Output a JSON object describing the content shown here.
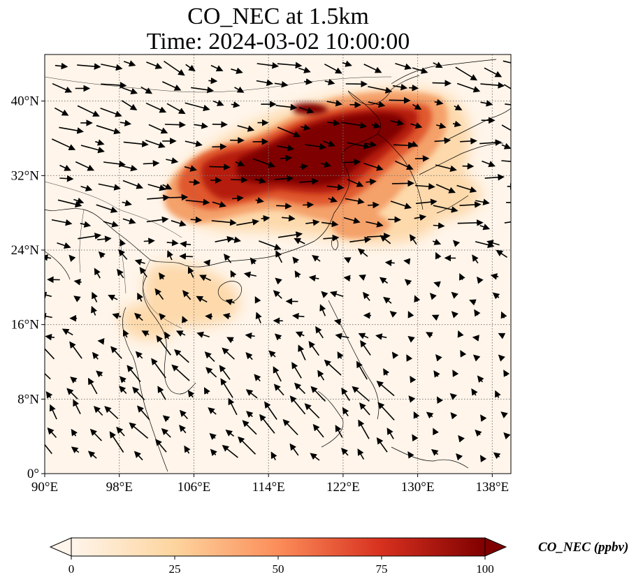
{
  "title": {
    "line1": "CO_NEC at 1.5km",
    "line2": "Time: 2024-03-02 10:00:00"
  },
  "map": {
    "lon_range": [
      90,
      140
    ],
    "lat_range": [
      0,
      45
    ],
    "x_ticks": [
      {
        "lon": 90,
        "label": "90°E"
      },
      {
        "lon": 98,
        "label": "98°E"
      },
      {
        "lon": 106,
        "label": "106°E"
      },
      {
        "lon": 114,
        "label": "114°E"
      },
      {
        "lon": 122,
        "label": "122°E"
      },
      {
        "lon": 130,
        "label": "130°E"
      },
      {
        "lon": 138,
        "label": "138°E"
      }
    ],
    "y_ticks": [
      {
        "lat": 0,
        "label": "0°"
      },
      {
        "lat": 8,
        "label": "8°N"
      },
      {
        "lat": 16,
        "label": "16°N"
      },
      {
        "lat": 24,
        "label": "24°N"
      },
      {
        "lat": 32,
        "label": "32°N"
      },
      {
        "lat": 40,
        "label": "40°N"
      }
    ],
    "gridlines": true,
    "background_color": "#fff5ea",
    "plume_colors": [
      "#fdd9ab",
      "#f4a16b",
      "#e0592f",
      "#b51c0c",
      "#7f0000"
    ]
  },
  "colorbar": {
    "label": "CO_NEC (ppbv)",
    "min": 0,
    "max": 100,
    "ticks": [
      {
        "value": 0,
        "label": "0"
      },
      {
        "value": 25,
        "label": "25"
      },
      {
        "value": 50,
        "label": "50"
      },
      {
        "value": 75,
        "label": "75"
      },
      {
        "value": 100,
        "label": "100"
      }
    ],
    "extend": "both",
    "colors": [
      "#fff5eb",
      "#fdd49e",
      "#fc8d59",
      "#d7301f",
      "#7f0000"
    ]
  }
}
